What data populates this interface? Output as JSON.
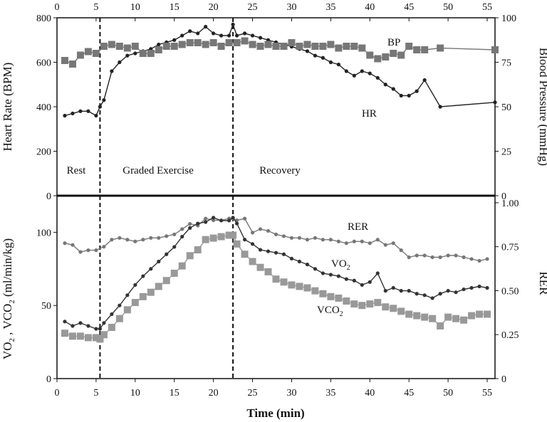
{
  "chart_data": [
    {
      "type": "line",
      "panel": "top",
      "x_axis_top": {
        "ticks": [
          0,
          5,
          10,
          15,
          20,
          25,
          30,
          35,
          40,
          45,
          50,
          55
        ],
        "xlim": [
          0,
          56
        ]
      },
      "y_left": {
        "label": "Heart Rate (BPM)",
        "ticks": [
          0,
          200,
          400,
          600,
          800
        ],
        "ylim": [
          0,
          800
        ]
      },
      "y_right": {
        "label": "Blood Pressure (mmHg)",
        "ticks": [
          0,
          25,
          50,
          75,
          100
        ],
        "ylim": [
          0,
          100
        ]
      },
      "phase_lines": [
        5.5,
        22.5
      ],
      "phase_labels": [
        {
          "text": "Rest",
          "x": 2.2
        },
        {
          "text": "Graded Exercise",
          "x": 13
        },
        {
          "text": "Recovery",
          "x": 29
        }
      ],
      "series": [
        {
          "name": "HR",
          "label": "HR",
          "axis": "left",
          "color": "#222222",
          "marker": "circle",
          "x": [
            1,
            2,
            3,
            4,
            5,
            5.5,
            6,
            7,
            8,
            9,
            10,
            11,
            12,
            13,
            14,
            15,
            16,
            17,
            18,
            19,
            20,
            21,
            22,
            22.5,
            23,
            24,
            25,
            26,
            27,
            28,
            29,
            30,
            31,
            32,
            33,
            34,
            35,
            36,
            37,
            38,
            39,
            40,
            41,
            42,
            43,
            44,
            45,
            46,
            47,
            49,
            56
          ],
          "values": [
            360,
            370,
            380,
            380,
            360,
            400,
            430,
            560,
            600,
            630,
            640,
            650,
            660,
            680,
            690,
            700,
            720,
            740,
            730,
            760,
            730,
            720,
            720,
            770,
            720,
            730,
            720,
            710,
            700,
            690,
            680,
            670,
            660,
            650,
            630,
            620,
            600,
            590,
            560,
            540,
            560,
            550,
            530,
            500,
            480,
            450,
            450,
            470,
            520,
            400,
            420
          ]
        },
        {
          "name": "BP",
          "label": "BP",
          "axis": "right",
          "color": "#777777",
          "marker": "square",
          "x": [
            1,
            2,
            3,
            4,
            5,
            6,
            7,
            8,
            9,
            10,
            11,
            12,
            13,
            14,
            15,
            16,
            17,
            18,
            19,
            20,
            21,
            22,
            23,
            24,
            25,
            26,
            27,
            28,
            29,
            30,
            31,
            32,
            33,
            34,
            35,
            36,
            37,
            38,
            39,
            40,
            41,
            42,
            43,
            44,
            45,
            46,
            47,
            49,
            56
          ],
          "values": [
            76,
            74,
            79,
            81,
            80,
            84,
            85,
            84,
            83,
            84,
            80,
            80,
            82,
            84,
            84,
            85,
            86,
            86,
            85,
            86,
            84,
            86,
            86,
            87,
            85,
            84,
            85,
            84,
            84,
            86,
            84,
            85,
            84,
            84,
            85,
            83,
            84,
            84,
            83,
            79,
            77,
            78,
            80,
            79,
            84,
            82,
            82,
            83,
            82
          ]
        }
      ]
    },
    {
      "type": "line",
      "panel": "bottom",
      "xlabel": "Time (min)",
      "x_axis": {
        "ticks": [
          0,
          5,
          10,
          15,
          20,
          25,
          30,
          35,
          40,
          45,
          50,
          55
        ],
        "xlim": [
          0,
          56
        ]
      },
      "y_left": {
        "label": "VO2 , VCO2 (ml/min/kg)",
        "ticks": [
          0,
          50,
          100
        ],
        "ylim": [
          0,
          125
        ]
      },
      "y_right": {
        "label": "RER",
        "ticks": [
          "0",
          "0.25",
          "0.50",
          "0.75",
          "1.00"
        ],
        "ylim": [
          0,
          1.04
        ]
      },
      "phase_lines": [
        5.5,
        22.5
      ],
      "series": [
        {
          "name": "RER",
          "label": "RER",
          "axis": "right",
          "color": "#777777",
          "marker": "circle",
          "x": [
            1,
            2,
            3,
            4,
            5,
            6,
            7,
            8,
            9,
            10,
            11,
            12,
            13,
            14,
            15,
            16,
            17,
            18,
            19,
            20,
            21,
            22,
            22.5,
            23,
            24,
            25,
            26,
            27,
            28,
            29,
            30,
            31,
            32,
            33,
            34,
            35,
            36,
            37,
            38,
            39,
            40,
            41,
            42,
            43,
            44,
            45,
            46,
            47,
            48,
            49,
            50,
            51,
            52,
            53,
            54,
            55
          ],
          "values": [
            0.77,
            0.76,
            0.72,
            0.73,
            0.73,
            0.75,
            0.79,
            0.8,
            0.79,
            0.78,
            0.79,
            0.8,
            0.8,
            0.81,
            0.82,
            0.85,
            0.88,
            0.87,
            0.91,
            0.9,
            0.9,
            0.91,
            0.91,
            0.9,
            0.91,
            0.83,
            0.85,
            0.84,
            0.82,
            0.81,
            0.8,
            0.8,
            0.79,
            0.8,
            0.79,
            0.79,
            0.78,
            0.77,
            0.78,
            0.78,
            0.77,
            0.79,
            0.76,
            0.77,
            0.73,
            0.69,
            0.7,
            0.7,
            0.69,
            0.69,
            0.7,
            0.7,
            0.69,
            0.68,
            0.67,
            0.68
          ]
        },
        {
          "name": "VO2",
          "label": "VO2",
          "axis": "left",
          "color": "#333333",
          "marker": "circle",
          "x": [
            1,
            2,
            3,
            4,
            5,
            5.5,
            6,
            7,
            8,
            9,
            10,
            11,
            12,
            13,
            14,
            15,
            16,
            17,
            18,
            19,
            20,
            21,
            22,
            22.5,
            23,
            24,
            25,
            26,
            27,
            28,
            29,
            30,
            31,
            32,
            33,
            34,
            35,
            36,
            37,
            38,
            39,
            40,
            41,
            42,
            43,
            44,
            45,
            46,
            47,
            48,
            49,
            50,
            51,
            52,
            53,
            54,
            55
          ],
          "values": [
            39,
            36,
            38,
            36,
            34,
            34,
            38,
            44,
            50,
            57,
            64,
            70,
            75,
            80,
            85,
            90,
            97,
            103,
            106,
            107,
            110,
            108,
            108,
            110,
            106,
            95,
            92,
            88,
            87,
            86,
            85,
            82,
            80,
            78,
            75,
            72,
            71,
            70,
            68,
            67,
            64,
            66,
            72,
            60,
            62,
            60,
            60,
            58,
            57,
            55,
            58,
            60,
            59,
            61,
            62,
            63,
            62
          ]
        },
        {
          "name": "VCO2",
          "label": "VCO2",
          "axis": "left",
          "color": "#999999",
          "marker": "square",
          "x": [
            1,
            2,
            3,
            4,
            5,
            5.5,
            6,
            7,
            8,
            9,
            10,
            11,
            12,
            13,
            14,
            15,
            16,
            17,
            18,
            19,
            20,
            21,
            22,
            22.5,
            23,
            24,
            25,
            26,
            27,
            28,
            29,
            30,
            31,
            32,
            33,
            34,
            35,
            36,
            37,
            38,
            39,
            40,
            41,
            42,
            43,
            44,
            45,
            46,
            47,
            48,
            49,
            50,
            51,
            52,
            53,
            54,
            55
          ],
          "values": [
            31,
            29,
            29,
            28,
            28,
            27,
            30,
            35,
            41,
            47,
            52,
            56,
            59,
            63,
            67,
            72,
            77,
            84,
            88,
            95,
            96,
            97,
            98,
            98,
            92,
            85,
            80,
            76,
            73,
            68,
            66,
            64,
            63,
            62,
            60,
            58,
            56,
            55,
            53,
            51,
            50,
            51,
            52,
            49,
            48,
            46,
            44,
            43,
            42,
            41,
            36,
            42,
            41,
            40,
            43,
            44,
            44
          ]
        }
      ]
    }
  ],
  "labels": {
    "top_y_left": "Heart Rate (BPM)",
    "top_y_right": "Blood Pressure (mmHg)",
    "bottom_y_left": "VO2 , VCO2 (ml/min/kg)",
    "bottom_y_right": "RER",
    "x_label": "Time (min)",
    "rest": "Rest",
    "graded": "Graded Exercise",
    "recovery": "Recovery",
    "bp": "BP",
    "hr": "HR",
    "rer": "RER",
    "vo2": "VO2",
    "vco2": "VCO2"
  }
}
